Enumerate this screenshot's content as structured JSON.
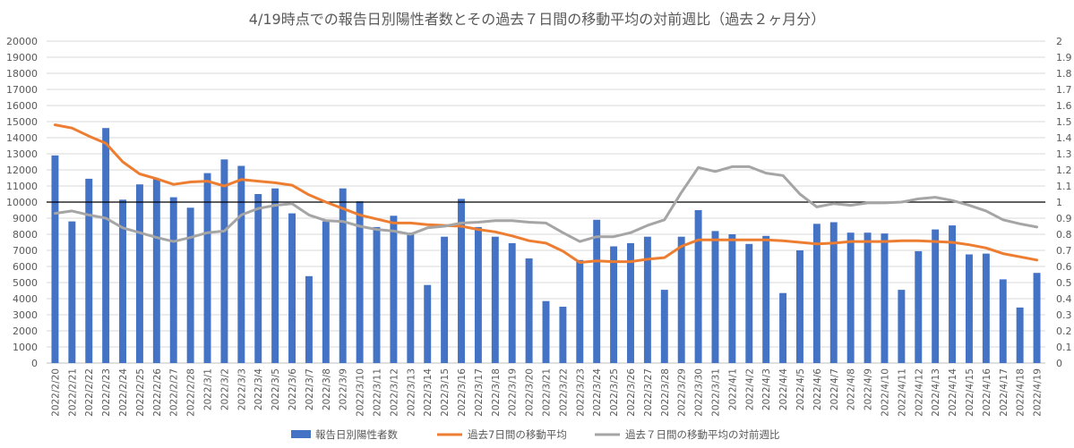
{
  "chart_data": {
    "type": "bar",
    "title": "4/19時点での報告日別陽性者数とその過去７日間の移動平均の対前週比（過去２ヶ月分）",
    "categories": [
      "2022/2/20",
      "2022/2/21",
      "2022/2/22",
      "2022/2/23",
      "2022/2/24",
      "2022/2/25",
      "2022/2/26",
      "2022/2/27",
      "2022/2/28",
      "2022/3/1",
      "2022/3/2",
      "2022/3/3",
      "2022/3/4",
      "2022/3/5",
      "2022/3/6",
      "2022/3/7",
      "2022/3/8",
      "2022/3/9",
      "2022/3/10",
      "2022/3/11",
      "2022/3/12",
      "2022/3/13",
      "2022/3/14",
      "2022/3/15",
      "2022/3/16",
      "2022/3/17",
      "2022/3/18",
      "2022/3/19",
      "2022/3/20",
      "2022/3/21",
      "2022/3/22",
      "2022/3/23",
      "2022/3/24",
      "2022/3/25",
      "2022/3/26",
      "2022/3/27",
      "2022/3/28",
      "2022/3/29",
      "2022/3/30",
      "2022/3/31",
      "2022/4/1",
      "2022/4/2",
      "2022/4/3",
      "2022/4/4",
      "2022/4/5",
      "2022/4/6",
      "2022/4/7",
      "2022/4/8",
      "2022/4/9",
      "2022/4/10",
      "2022/4/11",
      "2022/4/12",
      "2022/4/13",
      "2022/4/14",
      "2022/4/15",
      "2022/4/16",
      "2022/4/17",
      "2022/4/18",
      "2022/4/19"
    ],
    "series": [
      {
        "name": "報告日別陽性者数",
        "type": "bar",
        "axis": "left",
        "color": "#4472c4",
        "values": [
          12900,
          8800,
          11450,
          14600,
          10150,
          11100,
          11450,
          10300,
          9650,
          11800,
          12650,
          12250,
          10500,
          10850,
          9300,
          5400,
          8800,
          10850,
          10050,
          8450,
          9150,
          8100,
          4850,
          7850,
          10200,
          8450,
          7850,
          7450,
          6500,
          3850,
          3500,
          6400,
          8900,
          7250,
          7450,
          7850,
          4550,
          7850,
          9500,
          8200,
          8000,
          7400,
          7900,
          4350,
          7000,
          8650,
          8750,
          8100,
          8100,
          8050,
          4550,
          6950,
          8300,
          8550,
          6750,
          6800,
          5200,
          3450,
          5600
        ]
      },
      {
        "name": "過去7日間の移動平均",
        "type": "line",
        "axis": "left",
        "color": "#ed7d31",
        "values": [
          14800,
          14600,
          14100,
          13650,
          12500,
          11750,
          11450,
          11100,
          11250,
          11300,
          11000,
          11400,
          11300,
          11200,
          11050,
          10450,
          10000,
          9600,
          9200,
          8950,
          8700,
          8700,
          8600,
          8550,
          8500,
          8300,
          8150,
          7900,
          7600,
          7450,
          6950,
          6250,
          6350,
          6300,
          6300,
          6450,
          6550,
          7250,
          7650,
          7650,
          7650,
          7650,
          7650,
          7600,
          7500,
          7400,
          7450,
          7550,
          7550,
          7550,
          7600,
          7600,
          7550,
          7500,
          7350,
          7150,
          6800,
          6600,
          6400
        ]
      },
      {
        "name": "過去７日間の移動平均の対前週比",
        "type": "line",
        "axis": "right",
        "color": "#a5a5a5",
        "values": [
          0.93,
          0.945,
          0.92,
          0.9,
          0.84,
          0.81,
          0.78,
          0.755,
          0.78,
          0.81,
          0.82,
          0.92,
          0.96,
          0.98,
          0.99,
          0.92,
          0.885,
          0.88,
          0.85,
          0.83,
          0.82,
          0.8,
          0.84,
          0.85,
          0.87,
          0.875,
          0.885,
          0.885,
          0.875,
          0.87,
          0.81,
          0.755,
          0.785,
          0.785,
          0.81,
          0.855,
          0.89,
          1.06,
          1.215,
          1.19,
          1.22,
          1.22,
          1.18,
          1.165,
          1.05,
          0.97,
          0.99,
          0.98,
          0.995,
          0.995,
          1.0,
          1.02,
          1.03,
          1.01,
          0.98,
          0.945,
          0.89,
          0.865,
          0.845
        ]
      }
    ],
    "left_axis": {
      "ylim": [
        0,
        20000
      ],
      "ticks": [
        "0",
        "1000",
        "2000",
        "3000",
        "4000",
        "5000",
        "6000",
        "7000",
        "8000",
        "9000",
        "10000",
        "11000",
        "12000",
        "13000",
        "14000",
        "15000",
        "16000",
        "17000",
        "18000",
        "19000",
        "20000"
      ]
    },
    "right_axis": {
      "ylim": [
        0,
        2
      ],
      "ticks": [
        "0",
        "0.1",
        "0.2",
        "0.3",
        "0.4",
        "0.5",
        "0.6",
        "0.7",
        "0.8",
        "0.9",
        "1",
        "1.1",
        "1.2",
        "1.3",
        "1.4",
        "1.5",
        "1.6",
        "1.7",
        "1.8",
        "1.9",
        "2"
      ]
    },
    "reference_line": {
      "axis": "right",
      "value": 1,
      "color": "#000000"
    },
    "grid": true,
    "legend": "bottom"
  }
}
